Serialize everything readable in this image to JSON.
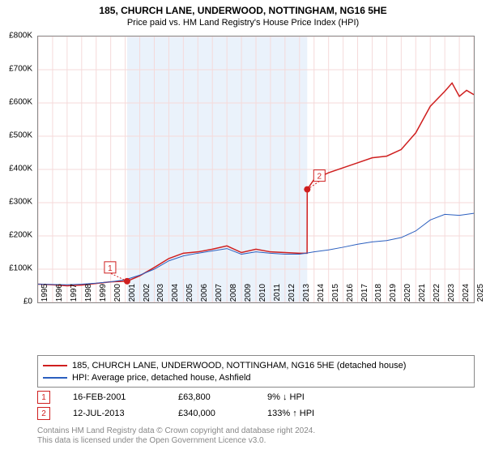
{
  "title": "185, CHURCH LANE, UNDERWOOD, NOTTINGHAM, NG16 5HE",
  "subtitle": "Price paid vs. HM Land Registry's House Price Index (HPI)",
  "chart": {
    "type": "line",
    "background_color": "#ffffff",
    "grid_color": "#f5dada",
    "border_color": "#888888",
    "shaded_region": {
      "x_start": 2001.13,
      "x_end": 2013.53,
      "color": "#eaf2fb"
    },
    "ylim": [
      0,
      800
    ],
    "ytick_step": 100,
    "yticks_labels": [
      "£0",
      "£100K",
      "£200K",
      "£300K",
      "£400K",
      "£500K",
      "£600K",
      "£700K",
      "£800K"
    ],
    "xlim": [
      1995,
      2025
    ],
    "xticks": [
      1995,
      1996,
      1997,
      1998,
      1999,
      2000,
      2001,
      2002,
      2003,
      2004,
      2005,
      2006,
      2007,
      2008,
      2009,
      2010,
      2011,
      2012,
      2013,
      2014,
      2015,
      2016,
      2017,
      2018,
      2019,
      2020,
      2021,
      2022,
      2023,
      2024,
      2025
    ],
    "series": [
      {
        "name": "property",
        "label": "185, CHURCH LANE, UNDERWOOD, NOTTINGHAM, NG16 5HE (detached house)",
        "color": "#cf1f1f",
        "line_width": 1.5,
        "points": [
          [
            1995,
            55
          ],
          [
            1996,
            53
          ],
          [
            1997,
            50
          ],
          [
            1998,
            52
          ],
          [
            1999,
            57
          ],
          [
            2000,
            62
          ],
          [
            2001.13,
            63.8
          ],
          [
            2002,
            80
          ],
          [
            2003,
            105
          ],
          [
            2004,
            132
          ],
          [
            2005,
            148
          ],
          [
            2006,
            152
          ],
          [
            2007,
            160
          ],
          [
            2008,
            170
          ],
          [
            2009,
            150
          ],
          [
            2010,
            160
          ],
          [
            2011,
            152
          ],
          [
            2012,
            150
          ],
          [
            2013,
            148
          ],
          [
            2013.52,
            148
          ],
          [
            2013.53,
            340
          ],
          [
            2014,
            370
          ],
          [
            2015,
            390
          ],
          [
            2016,
            405
          ],
          [
            2017,
            420
          ],
          [
            2018,
            435
          ],
          [
            2019,
            440
          ],
          [
            2020,
            460
          ],
          [
            2021,
            510
          ],
          [
            2022,
            590
          ],
          [
            2023,
            635
          ],
          [
            2023.5,
            660
          ],
          [
            2024,
            620
          ],
          [
            2024.5,
            638
          ],
          [
            2025,
            625
          ]
        ]
      },
      {
        "name": "hpi",
        "label": "HPI: Average price, detached house, Ashfield",
        "color": "#2b5fbf",
        "line_width": 1,
        "points": [
          [
            1995,
            55
          ],
          [
            1996,
            54
          ],
          [
            1997,
            53
          ],
          [
            1998,
            55
          ],
          [
            1999,
            58
          ],
          [
            2000,
            62
          ],
          [
            2001,
            68
          ],
          [
            2002,
            82
          ],
          [
            2003,
            100
          ],
          [
            2004,
            125
          ],
          [
            2005,
            140
          ],
          [
            2006,
            148
          ],
          [
            2007,
            155
          ],
          [
            2008,
            162
          ],
          [
            2009,
            145
          ],
          [
            2010,
            152
          ],
          [
            2011,
            148
          ],
          [
            2012,
            145
          ],
          [
            2013,
            145
          ],
          [
            2014,
            152
          ],
          [
            2015,
            158
          ],
          [
            2016,
            166
          ],
          [
            2017,
            175
          ],
          [
            2018,
            182
          ],
          [
            2019,
            186
          ],
          [
            2020,
            195
          ],
          [
            2021,
            215
          ],
          [
            2022,
            248
          ],
          [
            2023,
            265
          ],
          [
            2024,
            262
          ],
          [
            2025,
            268
          ]
        ]
      }
    ],
    "sale_markers": [
      {
        "num": "1",
        "x": 2001.13,
        "y": 63.8,
        "dot_color": "#cf1f1f",
        "box_color": "#cf1f1f",
        "box_dx": -28,
        "box_dy": -24
      },
      {
        "num": "2",
        "x": 2013.53,
        "y": 340,
        "dot_color": "#cf1f1f",
        "box_color": "#cf1f1f",
        "box_dx": 8,
        "box_dy": -24
      }
    ]
  },
  "legend": {
    "rows": [
      {
        "color": "#cf1f1f",
        "text": "185, CHURCH LANE, UNDERWOOD, NOTTINGHAM, NG16 5HE (detached house)"
      },
      {
        "color": "#2b5fbf",
        "text": "HPI: Average price, detached house, Ashfield"
      }
    ]
  },
  "sales": [
    {
      "num": "1",
      "color": "#cf1f1f",
      "date": "16-FEB-2001",
      "price": "£63,800",
      "delta": "9% ↓ HPI"
    },
    {
      "num": "2",
      "color": "#cf1f1f",
      "date": "12-JUL-2013",
      "price": "£340,000",
      "delta": "133% ↑ HPI"
    }
  ],
  "footnote1": "Contains HM Land Registry data © Crown copyright and database right 2024.",
  "footnote2": "This data is licensed under the Open Government Licence v3.0."
}
